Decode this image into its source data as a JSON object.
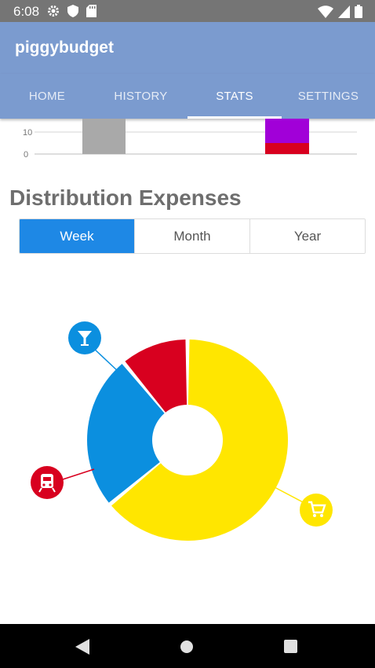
{
  "status_bar": {
    "time": "6:08",
    "icons_left": [
      "gear-icon",
      "shield-icon",
      "sd-card-icon"
    ],
    "icons_right": [
      "wifi-icon",
      "signal-icon",
      "battery-icon"
    ]
  },
  "app_bar": {
    "title": "piggybudget"
  },
  "tabs": [
    {
      "label": "HOME",
      "active": false
    },
    {
      "label": "HISTORY",
      "active": false
    },
    {
      "label": "STATS",
      "active": true
    },
    {
      "label": "SETTINGS",
      "active": false
    }
  ],
  "colors": {
    "app_bar": "#7b9bcf",
    "accent": "#1e88e5",
    "yellow": "#ffe600",
    "blue": "#0b8fdf",
    "red": "#d8001f",
    "purple": "#a100d8",
    "gray_bar": "#a9a9a9"
  },
  "bar_chart_partial": {
    "y_ticks": [
      "10",
      "0"
    ]
  },
  "distribution": {
    "title": "Distribution Expenses",
    "periods": [
      {
        "label": "Week",
        "active": true
      },
      {
        "label": "Month",
        "active": false
      },
      {
        "label": "Year",
        "active": false
      }
    ]
  },
  "chart_data": {
    "type": "pie",
    "slices": [
      {
        "category_icon": "shopping-cart-icon",
        "value": 64,
        "color": "#ffe600"
      },
      {
        "category_icon": "cocktail-icon",
        "value": 25,
        "color": "#0b8fdf"
      },
      {
        "category_icon": "train-icon",
        "value": 11,
        "color": "#d8001f"
      }
    ]
  },
  "nav_bar": {
    "buttons": [
      "back-icon",
      "home-icon",
      "recents-icon"
    ]
  }
}
